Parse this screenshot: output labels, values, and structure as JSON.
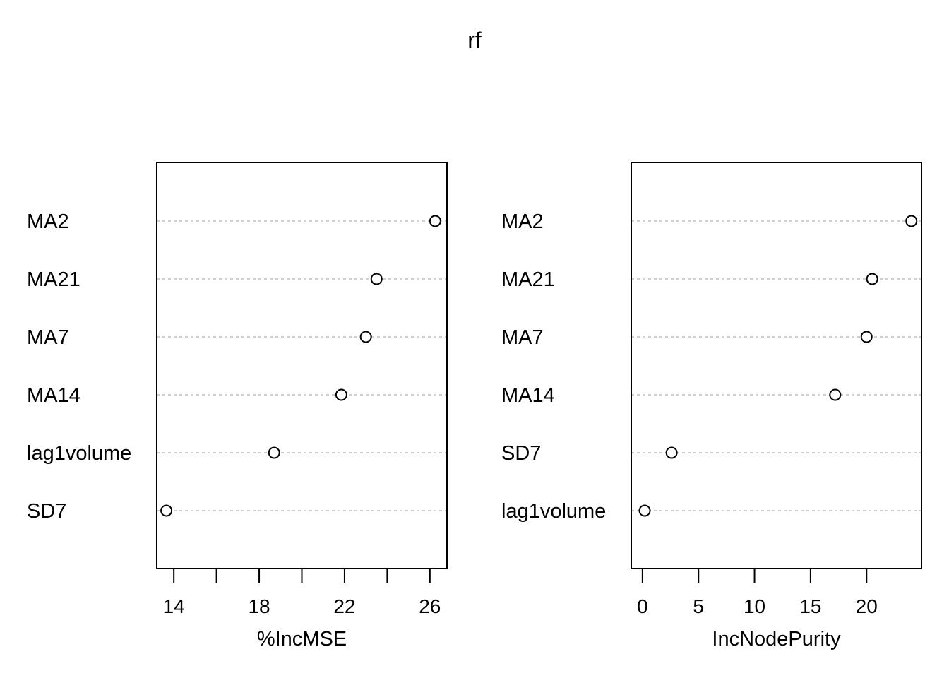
{
  "chart_data": {
    "type": "scatter",
    "title": "rf",
    "panels": [
      {
        "xlabel": "%IncMSE",
        "xlim": [
          13.2,
          26.8
        ],
        "xticks": [
          14,
          16,
          18,
          20,
          22,
          24,
          26
        ],
        "xtick_labels": [
          "14",
          "",
          "18",
          "",
          "22",
          "",
          "26"
        ],
        "categories": [
          "MA2",
          "MA21",
          "MA7",
          "MA14",
          "lag1volume",
          "SD7"
        ],
        "values": [
          26.25,
          23.5,
          23.0,
          21.85,
          18.7,
          13.65
        ]
      },
      {
        "xlabel": "IncNodePurity",
        "xlim": [
          -1.0,
          24.9
        ],
        "xticks": [
          0,
          5,
          10,
          15,
          20
        ],
        "xtick_labels": [
          "0",
          "5",
          "10",
          "15",
          "20"
        ],
        "categories": [
          "MA2",
          "MA21",
          "MA7",
          "MA14",
          "SD7",
          "lag1volume"
        ],
        "values": [
          24.0,
          20.5,
          20.0,
          17.2,
          2.6,
          0.2
        ]
      }
    ]
  }
}
